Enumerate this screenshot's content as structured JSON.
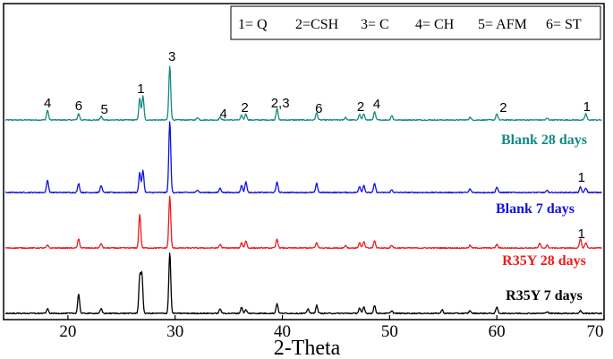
{
  "chart_data": {
    "type": "line",
    "xlabel": "2-Theta",
    "xlim": [
      14,
      70
    ],
    "x_ticks": [
      "20",
      "30",
      "40",
      "50",
      "60",
      "70"
    ],
    "x_tick_values": [
      20,
      30,
      40,
      50,
      60,
      70
    ],
    "y_ticks": false,
    "grid": false,
    "legend_placement": "top-right",
    "legend": [
      {
        "key": "1",
        "text": "1= Q"
      },
      {
        "key": "2",
        "text": "2=CSH"
      },
      {
        "key": "3",
        "text": "3= C"
      },
      {
        "key": "4",
        "text": "4= CH"
      },
      {
        "key": "5",
        "text": "5= AFM"
      },
      {
        "key": "6",
        "text": "6= ST"
      }
    ],
    "series": [
      {
        "name": "Blank 28 days",
        "color": "#138a84",
        "peaks": [
          {
            "x": 18.1,
            "h": 11
          },
          {
            "x": 21.0,
            "h": 7
          },
          {
            "x": 23.1,
            "h": 4
          },
          {
            "x": 26.7,
            "h": 24
          },
          {
            "x": 27.0,
            "h": 27
          },
          {
            "x": 29.5,
            "h": 60
          },
          {
            "x": 32.1,
            "h": 3
          },
          {
            "x": 34.2,
            "h": 3
          },
          {
            "x": 36.2,
            "h": 5
          },
          {
            "x": 36.6,
            "h": 7
          },
          {
            "x": 39.5,
            "h": 13
          },
          {
            "x": 43.2,
            "h": 8
          },
          {
            "x": 45.9,
            "h": 3
          },
          {
            "x": 47.2,
            "h": 6
          },
          {
            "x": 47.6,
            "h": 7
          },
          {
            "x": 48.6,
            "h": 9
          },
          {
            "x": 50.2,
            "h": 5
          },
          {
            "x": 57.5,
            "h": 3
          },
          {
            "x": 60.0,
            "h": 7
          },
          {
            "x": 64.7,
            "h": 2
          },
          {
            "x": 68.3,
            "h": 7
          }
        ],
        "peak_labels": [
          {
            "x": 18.1,
            "text": "4"
          },
          {
            "x": 21.0,
            "text": "6"
          },
          {
            "x": 23.4,
            "text": "5"
          },
          {
            "x": 26.8,
            "text": "1"
          },
          {
            "x": 29.7,
            "text": "3"
          },
          {
            "x": 34.5,
            "text": "4"
          },
          {
            "x": 36.5,
            "text": "2"
          },
          {
            "x": 39.8,
            "text": "2,3"
          },
          {
            "x": 43.4,
            "text": "6"
          },
          {
            "x": 47.3,
            "text": "2"
          },
          {
            "x": 48.8,
            "text": "4"
          },
          {
            "x": 60.6,
            "text": "2"
          },
          {
            "x": 68.4,
            "text": "1"
          }
        ]
      },
      {
        "name": "Blank 7 days",
        "color": "#1010e0",
        "peaks": [
          {
            "x": 18.1,
            "h": 14
          },
          {
            "x": 21.0,
            "h": 10
          },
          {
            "x": 23.1,
            "h": 8
          },
          {
            "x": 26.7,
            "h": 22
          },
          {
            "x": 27.0,
            "h": 25
          },
          {
            "x": 29.5,
            "h": 80
          },
          {
            "x": 32.1,
            "h": 3
          },
          {
            "x": 34.2,
            "h": 5
          },
          {
            "x": 36.2,
            "h": 8
          },
          {
            "x": 36.6,
            "h": 12
          },
          {
            "x": 39.5,
            "h": 12
          },
          {
            "x": 43.2,
            "h": 10
          },
          {
            "x": 47.2,
            "h": 7
          },
          {
            "x": 47.6,
            "h": 8
          },
          {
            "x": 48.6,
            "h": 10
          },
          {
            "x": 50.2,
            "h": 3
          },
          {
            "x": 57.5,
            "h": 4
          },
          {
            "x": 60.0,
            "h": 6
          },
          {
            "x": 64.7,
            "h": 2
          },
          {
            "x": 67.8,
            "h": 6
          },
          {
            "x": 68.3,
            "h": 5
          }
        ],
        "peak_labels": [
          {
            "x": 67.9,
            "text": "1"
          }
        ]
      },
      {
        "name": "R35Y 28 days",
        "color": "#ee1c1c",
        "peaks": [
          {
            "x": 18.1,
            "h": 3
          },
          {
            "x": 21.0,
            "h": 10
          },
          {
            "x": 23.1,
            "h": 5
          },
          {
            "x": 26.7,
            "h": 38
          },
          {
            "x": 29.5,
            "h": 58
          },
          {
            "x": 34.2,
            "h": 4
          },
          {
            "x": 36.2,
            "h": 6
          },
          {
            "x": 36.6,
            "h": 8
          },
          {
            "x": 39.5,
            "h": 10
          },
          {
            "x": 43.2,
            "h": 6
          },
          {
            "x": 45.9,
            "h": 3
          },
          {
            "x": 47.2,
            "h": 6
          },
          {
            "x": 47.6,
            "h": 7
          },
          {
            "x": 48.6,
            "h": 8
          },
          {
            "x": 50.2,
            "h": 3
          },
          {
            "x": 57.5,
            "h": 3
          },
          {
            "x": 60.0,
            "h": 4
          },
          {
            "x": 64.0,
            "h": 5
          },
          {
            "x": 64.7,
            "h": 3
          },
          {
            "x": 67.8,
            "h": 10
          },
          {
            "x": 68.3,
            "h": 6
          }
        ],
        "peak_labels": [
          {
            "x": 67.9,
            "text": "1"
          }
        ]
      },
      {
        "name": "R35Y 7 days",
        "color": "#000000",
        "peaks": [
          {
            "x": 18.1,
            "h": 5
          },
          {
            "x": 21.0,
            "h": 22
          },
          {
            "x": 23.1,
            "h": 5
          },
          {
            "x": 26.7,
            "h": 40
          },
          {
            "x": 26.9,
            "h": 42
          },
          {
            "x": 29.5,
            "h": 68
          },
          {
            "x": 34.2,
            "h": 5
          },
          {
            "x": 36.2,
            "h": 7
          },
          {
            "x": 36.6,
            "h": 4
          },
          {
            "x": 39.5,
            "h": 11
          },
          {
            "x": 43.2,
            "h": 9
          },
          {
            "x": 42.4,
            "h": 5
          },
          {
            "x": 47.2,
            "h": 6
          },
          {
            "x": 47.6,
            "h": 7
          },
          {
            "x": 48.6,
            "h": 9
          },
          {
            "x": 50.2,
            "h": 3
          },
          {
            "x": 54.9,
            "h": 4
          },
          {
            "x": 57.5,
            "h": 3
          },
          {
            "x": 60.0,
            "h": 7
          },
          {
            "x": 64.7,
            "h": 2
          },
          {
            "x": 67.8,
            "h": 3
          }
        ],
        "peak_labels": []
      }
    ]
  }
}
